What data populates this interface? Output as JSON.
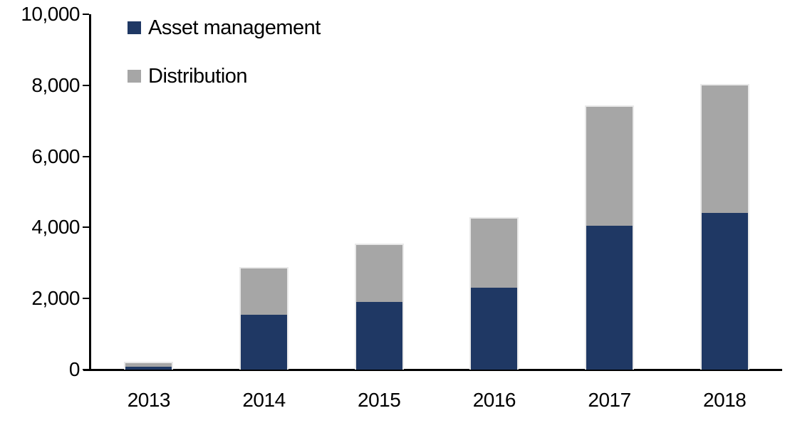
{
  "chart_data": {
    "type": "bar",
    "stacked": true,
    "title": "",
    "xlabel": "",
    "ylabel": "",
    "categories": [
      "2013",
      "2014",
      "2015",
      "2016",
      "2017",
      "2018"
    ],
    "series": [
      {
        "name": "Asset management",
        "color": "#1F3864",
        "values": [
          90,
          1550,
          1900,
          2300,
          4050,
          4400
        ]
      },
      {
        "name": "Distribution",
        "color": "#A6A6A6",
        "values": [
          95,
          1300,
          1600,
          1950,
          3350,
          3600
        ]
      }
    ],
    "totals": [
      185,
      2850,
      3500,
      4250,
      7400,
      8000
    ],
    "ylim": [
      0,
      10000
    ],
    "y_tick_labels": [
      "0",
      "2,000",
      "4,000",
      "6,000",
      "8,000",
      "10,000"
    ],
    "y_tick_values": [
      0,
      2000,
      4000,
      6000,
      8000,
      10000
    ],
    "grid": false,
    "legend_position": "top-left-inside"
  },
  "legend": {
    "items": [
      {
        "label": "Asset management",
        "color": "#1F3864"
      },
      {
        "label": "Distribution",
        "color": "#A6A6A6"
      }
    ]
  },
  "colors": {
    "axis": "#000000",
    "text": "#000000",
    "background": "#FFFFFF",
    "bar_border": "#E9E9E9"
  }
}
